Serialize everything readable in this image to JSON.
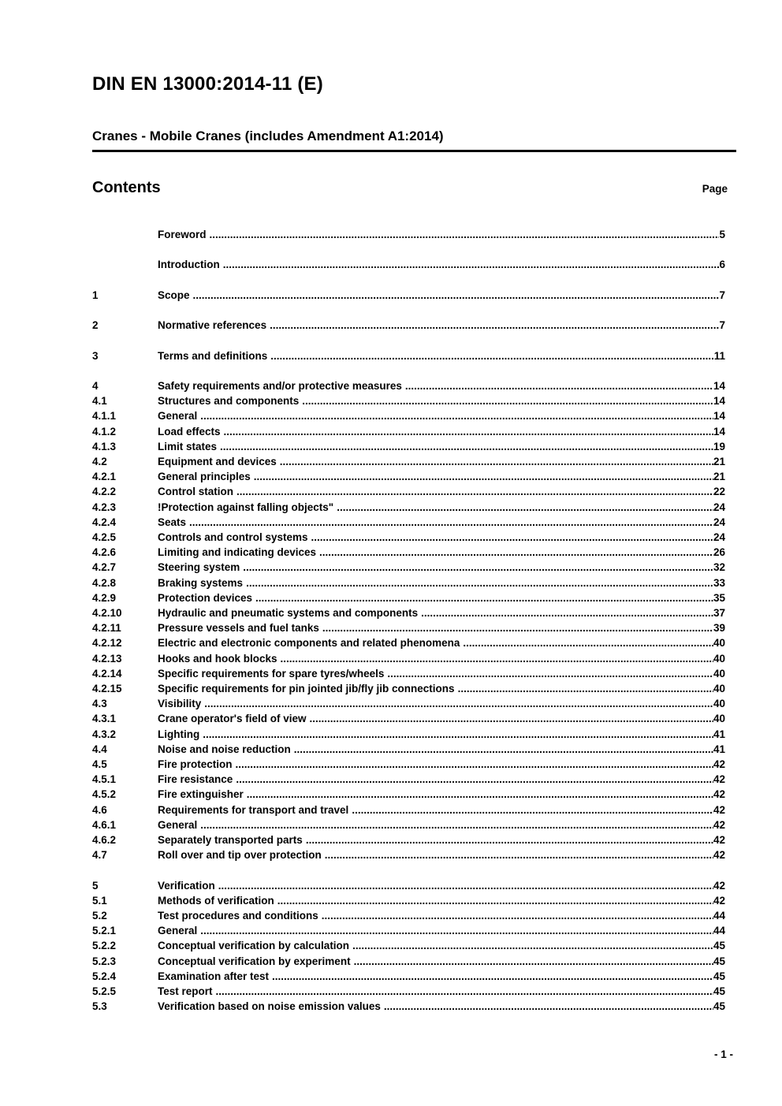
{
  "header": {
    "doc_number": "DIN EN 13000:2014-11 (E)",
    "doc_title": "Cranes - Mobile Cranes (includes Amendment A1:2014)",
    "contents_label": "Contents",
    "page_label": "Page"
  },
  "toc": [
    {
      "num": "",
      "title": "Foreword",
      "page": "5",
      "gap": false
    },
    {
      "num": "",
      "title": "Introduction",
      "page": "6",
      "gap": true
    },
    {
      "num": "1",
      "title": "Scope",
      "page": "7",
      "gap": true
    },
    {
      "num": "2",
      "title": "Normative references",
      "page": "7",
      "gap": true
    },
    {
      "num": "3",
      "title": "Terms and definitions",
      "page": "11",
      "gap": true
    },
    {
      "num": "4",
      "title": "Safety requirements and/or protective measures",
      "page": "14",
      "gap": true
    },
    {
      "num": "4.1",
      "title": "Structures and components",
      "page": "14",
      "gap": false
    },
    {
      "num": "4.1.1",
      "title": "General",
      "page": "14",
      "gap": false
    },
    {
      "num": "4.1.2",
      "title": "Load effects",
      "page": "14",
      "gap": false
    },
    {
      "num": "4.1.3",
      "title": "Limit states",
      "page": "19",
      "gap": false
    },
    {
      "num": "4.2",
      "title": "Equipment and devices",
      "page": "21",
      "gap": false
    },
    {
      "num": "4.2.1",
      "title": "General principles",
      "page": "21",
      "gap": false
    },
    {
      "num": "4.2.2",
      "title": "Control station",
      "page": "22",
      "gap": false
    },
    {
      "num": "4.2.3",
      "title": "!Protection against falling objects\"",
      "page": "24",
      "gap": false
    },
    {
      "num": "4.2.4",
      "title": "Seats",
      "page": "24",
      "gap": false
    },
    {
      "num": "4.2.5",
      "title": "Controls and control systems",
      "page": "24",
      "gap": false
    },
    {
      "num": "4.2.6",
      "title": "Limiting and indicating devices",
      "page": "26",
      "gap": false
    },
    {
      "num": "4.2.7",
      "title": "Steering system",
      "page": "32",
      "gap": false
    },
    {
      "num": "4.2.8",
      "title": "Braking systems",
      "page": "33",
      "gap": false
    },
    {
      "num": "4.2.9",
      "title": "Protection devices",
      "page": "35",
      "gap": false
    },
    {
      "num": "4.2.10",
      "title": "Hydraulic and pneumatic systems and components",
      "page": "37",
      "gap": false
    },
    {
      "num": "4.2.11",
      "title": "Pressure vessels and fuel tanks",
      "page": "39",
      "gap": false
    },
    {
      "num": "4.2.12",
      "title": "Electric and electronic components and related phenomena",
      "page": "40",
      "gap": false
    },
    {
      "num": "4.2.13",
      "title": "Hooks and hook blocks",
      "page": "40",
      "gap": false
    },
    {
      "num": "4.2.14",
      "title": "Specific requirements for spare tyres/wheels",
      "page": "40",
      "gap": false
    },
    {
      "num": "4.2.15",
      "title": "Specific requirements for pin jointed jib/fly jib connections",
      "page": "40",
      "gap": false
    },
    {
      "num": "4.3",
      "title": "Visibility",
      "page": "40",
      "gap": false
    },
    {
      "num": "4.3.1",
      "title": "Crane operator's field of view",
      "page": "40",
      "gap": false
    },
    {
      "num": "4.3.2",
      "title": "Lighting",
      "page": "41",
      "gap": false
    },
    {
      "num": "4.4",
      "title": "Noise and noise reduction",
      "page": "41",
      "gap": false
    },
    {
      "num": "4.5",
      "title": "Fire protection",
      "page": "42",
      "gap": false
    },
    {
      "num": "4.5.1",
      "title": "Fire resistance",
      "page": "42",
      "gap": false
    },
    {
      "num": "4.5.2",
      "title": "Fire extinguisher",
      "page": "42",
      "gap": false
    },
    {
      "num": "4.6",
      "title": "Requirements for transport and travel",
      "page": "42",
      "gap": false
    },
    {
      "num": "4.6.1",
      "title": "General",
      "page": "42",
      "gap": false
    },
    {
      "num": "4.6.2",
      "title": "Separately transported parts",
      "page": "42",
      "gap": false
    },
    {
      "num": "4.7",
      "title": "Roll over and tip over protection",
      "page": "42",
      "gap": false
    },
    {
      "num": "5",
      "title": "Verification",
      "page": "42",
      "gap": true
    },
    {
      "num": "5.1",
      "title": "Methods of verification",
      "page": "42",
      "gap": false
    },
    {
      "num": "5.2",
      "title": "Test procedures and conditions",
      "page": "44",
      "gap": false
    },
    {
      "num": "5.2.1",
      "title": "General",
      "page": "44",
      "gap": false
    },
    {
      "num": "5.2.2",
      "title": "Conceptual verification by calculation",
      "page": "45",
      "gap": false
    },
    {
      "num": "5.2.3",
      "title": "Conceptual verification by experiment",
      "page": "45",
      "gap": false
    },
    {
      "num": "5.2.4",
      "title": "Examination after test",
      "page": "45",
      "gap": false
    },
    {
      "num": "5.2.5",
      "title": "Test report",
      "page": "45",
      "gap": false
    },
    {
      "num": "5.3",
      "title": "Verification based on noise emission values",
      "page": "45",
      "gap": false
    }
  ],
  "footer": {
    "page_number": "- 1 -"
  }
}
